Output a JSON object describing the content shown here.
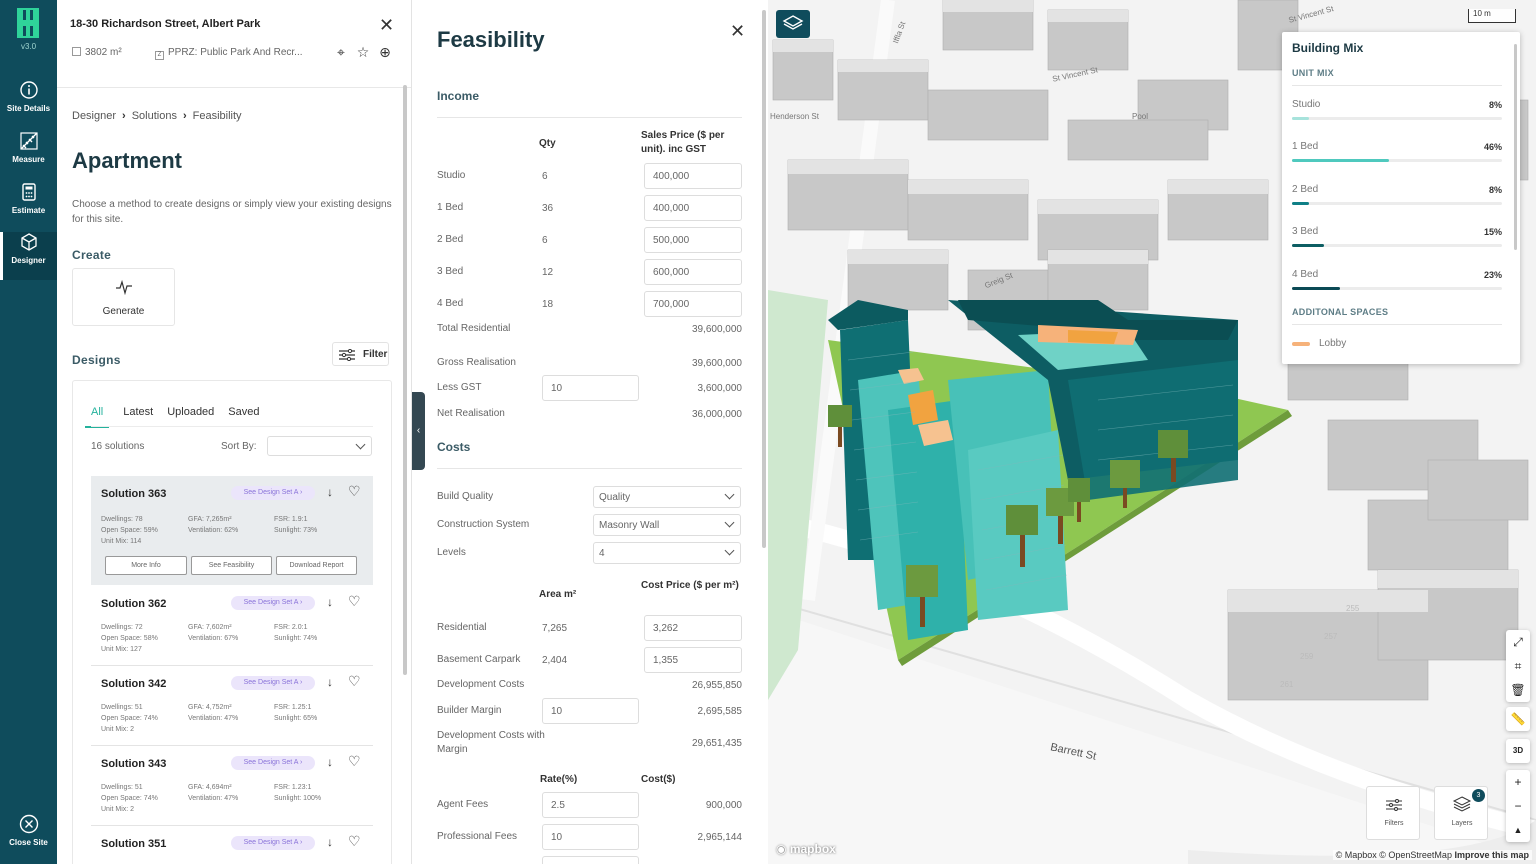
{
  "app": {
    "version": "v3.0"
  },
  "nav": [
    {
      "label": "Site Details",
      "icon": "info-icon"
    },
    {
      "label": "Measure",
      "icon": "ruler-icon"
    },
    {
      "label": "Estimate",
      "icon": "calculator-icon"
    },
    {
      "label": "Designer",
      "icon": "cube-icon"
    }
  ],
  "nav_bottom": {
    "label": "Close Site",
    "icon": "close-circle-icon"
  },
  "site": {
    "address": "18-30 Richardson Street, Albert Park",
    "area": "3802 m²",
    "zoning": "PPRZ: Public Park And Recr..."
  },
  "breadcrumb": [
    "Designer",
    "Solutions",
    "Feasibility"
  ],
  "apartment": {
    "title": "Apartment",
    "description": "Choose a method to create designs or simply view your existing designs for this site.",
    "create_heading": "Create",
    "generate_label": "Generate",
    "designs_heading": "Designs",
    "filter_label": "Filter",
    "tabs": [
      "All",
      "Latest",
      "Uploaded",
      "Saved"
    ],
    "active_tab": "All",
    "solutions_count": "16 solutions",
    "sort_label": "Sort By:",
    "sort_value": ""
  },
  "solutions": [
    {
      "name": "Solution 363",
      "tag": "See Design Set A",
      "dwellings": "Dwellings: 78",
      "open_space": "Open Space: 59%",
      "unit_mix": "Unit Mix: 114",
      "gfa": "GFA: 7,265m²",
      "ventilation": "Ventilation: 62%",
      "fsr": "FSR: 1.9:1",
      "sunlight": "Sunlight: 73%",
      "selected": true
    },
    {
      "name": "Solution 362",
      "tag": "See Design Set A",
      "dwellings": "Dwellings: 72",
      "open_space": "Open Space: 58%",
      "unit_mix": "Unit Mix: 127",
      "gfa": "GFA: 7,602m²",
      "ventilation": "Ventilation: 67%",
      "fsr": "FSR: 2.0:1",
      "sunlight": "Sunlight: 74%"
    },
    {
      "name": "Solution 342",
      "tag": "See Design Set A",
      "dwellings": "Dwellings: 51",
      "open_space": "Open Space: 74%",
      "unit_mix": "Unit Mix: 2",
      "gfa": "GFA: 4,752m²",
      "ventilation": "Ventilation: 47%",
      "fsr": "FSR: 1.25:1",
      "sunlight": "Sunlight: 65%"
    },
    {
      "name": "Solution 343",
      "tag": "See Design Set A",
      "dwellings": "Dwellings: 51",
      "open_space": "Open Space: 74%",
      "unit_mix": "Unit Mix: 2",
      "gfa": "GFA: 4,694m²",
      "ventilation": "Ventilation: 47%",
      "fsr": "FSR: 1.23:1",
      "sunlight": "Sunlight: 100%"
    },
    {
      "name": "Solution 351",
      "tag": "See Design Set A"
    }
  ],
  "solution_buttons": [
    "More Info",
    "See Feasibility",
    "Download Report"
  ],
  "feasibility": {
    "title": "Feasibility",
    "income_heading": "Income",
    "qty_header": "Qty",
    "sales_header": "Sales Price ($ per unit). inc GST",
    "units": [
      {
        "label": "Studio",
        "qty": "6",
        "price": "400,000"
      },
      {
        "label": "1 Bed",
        "qty": "36",
        "price": "400,000"
      },
      {
        "label": "2 Bed",
        "qty": "6",
        "price": "500,000"
      },
      {
        "label": "3 Bed",
        "qty": "12",
        "price": "600,000"
      },
      {
        "label": "4 Bed",
        "qty": "18",
        "price": "700,000"
      }
    ],
    "total_residential_label": "Total Residential",
    "total_residential": "39,600,000",
    "gross_label": "Gross Realisation",
    "gross": "39,600,000",
    "gst_label": "Less GST",
    "gst_input": "10",
    "gst": "3,600,000",
    "net_label": "Net Realisation",
    "net": "36,000,000",
    "costs_heading": "Costs",
    "build_quality_label": "Build Quality",
    "build_quality": "Quality",
    "construction_label": "Construction System",
    "construction": "Masonry Wall",
    "levels_label": "Levels",
    "levels": "4",
    "area_header": "Area m²",
    "cost_price_header": "Cost Price ($ per m²)",
    "residential_label": "Residential",
    "residential_area": "7,265",
    "residential_cost": "3,262",
    "carpark_label": "Basement Carpark",
    "carpark_area": "2,404",
    "carpark_cost": "1,355",
    "dev_costs_label": "Development Costs",
    "dev_costs": "26,955,850",
    "builder_margin_label": "Builder Margin",
    "builder_margin_input": "10",
    "builder_margin": "2,695,585",
    "dev_margin_label": "Development Costs with Margin",
    "dev_margin": "29,651,435",
    "rate_header": "Rate(%)",
    "cost_header": "Cost($)",
    "agent_label": "Agent Fees",
    "agent_rate": "2.5",
    "agent_cost": "900,000",
    "prof_label": "Professional Fees",
    "prof_rate": "10",
    "prof_cost": "2,965,144"
  },
  "building_mix": {
    "title": "Building Mix",
    "unit_mix_heading": "UNIT MIX",
    "items": [
      {
        "label": "Studio",
        "pct": "8%",
        "value": 0.08,
        "color": "#a7e3dc"
      },
      {
        "label": "1 Bed",
        "pct": "46%",
        "value": 0.46,
        "color": "#4fc9be"
      },
      {
        "label": "2 Bed",
        "pct": "8%",
        "value": 0.08,
        "color": "#0f7f86"
      },
      {
        "label": "3 Bed",
        "pct": "15%",
        "value": 0.15,
        "color": "#0d5e63"
      },
      {
        "label": "4 Bed",
        "pct": "23%",
        "value": 0.23,
        "color": "#0b4a55"
      }
    ],
    "spaces_heading": "ADDITONAL SPACES",
    "spaces": [
      {
        "label": "Lobby",
        "color": "#f6b27a"
      }
    ]
  },
  "map": {
    "scale": "10 m",
    "streets": [
      "St Vincent St",
      "St Vincent St",
      "Henderson St",
      "Greig St",
      "Barrett St",
      "Iffla St",
      "Pool"
    ],
    "parcels": [
      "255",
      "257",
      "259",
      "261"
    ],
    "filters_label": "Filters",
    "layers_label": "Layers",
    "layers_badge": "3",
    "logo": "mapbox",
    "attribution": "© Mapbox © OpenStreetMap",
    "improve": "Improve this map"
  },
  "colors": {
    "rail": "#0f4c5c",
    "accent": "#24b29c"
  }
}
